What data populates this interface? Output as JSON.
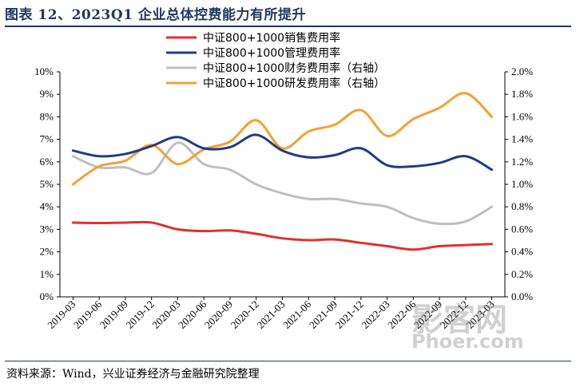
{
  "header": {
    "title": "图表 12、2023Q1 企业总体控费能力有所提升"
  },
  "footer": {
    "source": "资料来源：Wind，兴业证券经济与金融研究院整理"
  },
  "watermark": {
    "main": "影客网",
    "sub": "Phoer.com"
  },
  "chart_data": {
    "type": "line",
    "categories": [
      "2019-03",
      "2019-06",
      "2019-09",
      "2019-12",
      "2020-03",
      "2020-06",
      "2020-09",
      "2020-12",
      "2021-03",
      "2021-06",
      "2021-09",
      "2021-12",
      "2022-03",
      "2022-06",
      "2022-09",
      "2022-12",
      "2023-03"
    ],
    "x_tick_labels": [
      "2019-03",
      "2019-06",
      "2019-09",
      "2019-12",
      "2020-03",
      "2020-06",
      "2020-09",
      "2020-12",
      "2021-03",
      "2021-06",
      "2021-09",
      "2021-12",
      "2022-03",
      "2022-06",
      "2022-09",
      "2022-12",
      "2023-03"
    ],
    "left_axis": {
      "ylim": [
        0,
        10
      ],
      "ticks": [
        "0%",
        "1%",
        "2%",
        "3%",
        "4%",
        "5%",
        "6%",
        "7%",
        "8%",
        "9%",
        "10%"
      ]
    },
    "right_axis": {
      "ylim": [
        0,
        2.0
      ],
      "ticks": [
        "0.0%",
        "0.2%",
        "0.4%",
        "0.6%",
        "0.8%",
        "1.0%",
        "1.2%",
        "1.4%",
        "1.6%",
        "1.8%",
        "2.0%"
      ]
    },
    "legend_position": "top-center",
    "grid": false,
    "series": [
      {
        "name": "中证800+1000销售费用率",
        "axis": "left",
        "color": "#e03030",
        "values": [
          3.3,
          3.28,
          3.3,
          3.3,
          3.0,
          2.92,
          2.95,
          2.8,
          2.6,
          2.52,
          2.55,
          2.4,
          2.25,
          2.1,
          2.25,
          2.3,
          2.35
        ]
      },
      {
        "name": "中证800+1000管理费用率",
        "axis": "left",
        "color": "#1f3a8a",
        "values": [
          6.5,
          6.25,
          6.35,
          6.7,
          7.1,
          6.6,
          6.65,
          7.2,
          6.5,
          6.2,
          6.3,
          6.6,
          5.85,
          5.8,
          5.95,
          6.25,
          5.65
        ]
      },
      {
        "name": "中证800+1000财务费用率（右轴）",
        "axis": "right",
        "color": "#bfbfbf",
        "values": [
          1.25,
          1.15,
          1.15,
          1.1,
          1.37,
          1.18,
          1.13,
          1.0,
          0.92,
          0.87,
          0.87,
          0.83,
          0.8,
          0.7,
          0.65,
          0.67,
          0.8
        ]
      },
      {
        "name": "中证800+1000研发费用率（右轴）",
        "axis": "right",
        "color": "#f5a030",
        "values": [
          1.0,
          1.16,
          1.21,
          1.35,
          1.18,
          1.31,
          1.38,
          1.57,
          1.32,
          1.47,
          1.53,
          1.66,
          1.43,
          1.58,
          1.68,
          1.81,
          1.6
        ]
      }
    ]
  }
}
